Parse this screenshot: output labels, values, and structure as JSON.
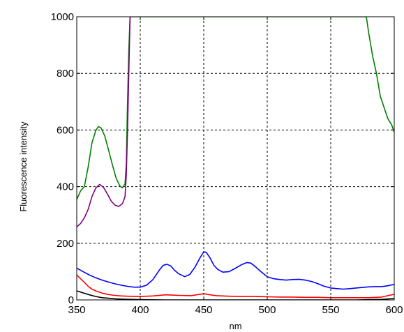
{
  "chart_data": {
    "type": "line",
    "title": "",
    "xlabel": "nm",
    "ylabel": "Fluorescence intensity",
    "xlim": [
      350,
      600
    ],
    "ylim": [
      0,
      1000
    ],
    "x_ticks": [
      350,
      400,
      450,
      500,
      550,
      600
    ],
    "y_ticks": [
      0,
      200,
      400,
      600,
      800,
      1000
    ],
    "x_tick_labels": [
      "350",
      "400",
      "450",
      "500",
      "550",
      "600"
    ],
    "y_tick_labels": [
      "0",
      "200",
      "400",
      "600",
      "800",
      "1000"
    ],
    "grid": true,
    "legend": "none",
    "series": [
      {
        "color": "#008000",
        "points": [
          [
            350,
            355
          ],
          [
            353,
            385
          ],
          [
            356,
            400
          ],
          [
            359,
            470
          ],
          [
            362,
            555
          ],
          [
            365,
            598
          ],
          [
            367,
            612
          ],
          [
            369,
            608
          ],
          [
            372,
            580
          ],
          [
            375,
            530
          ],
          [
            378,
            478
          ],
          [
            381,
            430
          ],
          [
            384,
            402
          ],
          [
            386,
            396
          ],
          [
            388,
            410
          ],
          [
            389,
            480
          ],
          [
            390,
            700
          ],
          [
            391,
            880
          ],
          [
            392,
            1000
          ],
          [
            578,
            1000
          ],
          [
            580,
            940
          ],
          [
            583,
            860
          ],
          [
            586,
            800
          ],
          [
            589,
            720
          ],
          [
            592,
            680
          ],
          [
            595,
            640
          ],
          [
            598,
            618
          ],
          [
            600,
            592
          ]
        ]
      },
      {
        "color": "#800080",
        "points": [
          [
            350,
            258
          ],
          [
            353,
            270
          ],
          [
            356,
            290
          ],
          [
            359,
            320
          ],
          [
            362,
            365
          ],
          [
            365,
            395
          ],
          [
            368,
            408
          ],
          [
            371,
            398
          ],
          [
            374,
            375
          ],
          [
            377,
            350
          ],
          [
            380,
            335
          ],
          [
            383,
            330
          ],
          [
            386,
            340
          ],
          [
            388,
            365
          ],
          [
            389,
            440
          ],
          [
            390,
            600
          ],
          [
            391,
            800
          ],
          [
            392,
            1000
          ]
        ]
      },
      {
        "color": "#0000ff",
        "points": [
          [
            350,
            112
          ],
          [
            355,
            100
          ],
          [
            360,
            88
          ],
          [
            365,
            78
          ],
          [
            370,
            70
          ],
          [
            375,
            63
          ],
          [
            380,
            57
          ],
          [
            385,
            52
          ],
          [
            390,
            48
          ],
          [
            395,
            45
          ],
          [
            400,
            45
          ],
          [
            405,
            52
          ],
          [
            410,
            72
          ],
          [
            415,
            105
          ],
          [
            418,
            122
          ],
          [
            421,
            126
          ],
          [
            424,
            120
          ],
          [
            427,
            105
          ],
          [
            430,
            93
          ],
          [
            435,
            82
          ],
          [
            439,
            90
          ],
          [
            443,
            115
          ],
          [
            447,
            148
          ],
          [
            450,
            170
          ],
          [
            452,
            168
          ],
          [
            455,
            148
          ],
          [
            458,
            122
          ],
          [
            461,
            108
          ],
          [
            465,
            98
          ],
          [
            470,
            100
          ],
          [
            475,
            112
          ],
          [
            480,
            125
          ],
          [
            484,
            132
          ],
          [
            487,
            130
          ],
          [
            490,
            120
          ],
          [
            495,
            100
          ],
          [
            500,
            82
          ],
          [
            505,
            75
          ],
          [
            510,
            72
          ],
          [
            515,
            70
          ],
          [
            520,
            72
          ],
          [
            525,
            73
          ],
          [
            530,
            70
          ],
          [
            535,
            65
          ],
          [
            540,
            57
          ],
          [
            545,
            48
          ],
          [
            550,
            42
          ],
          [
            555,
            40
          ],
          [
            560,
            38
          ],
          [
            565,
            40
          ],
          [
            570,
            42
          ],
          [
            575,
            44
          ],
          [
            580,
            46
          ],
          [
            585,
            47
          ],
          [
            590,
            47
          ],
          [
            595,
            50
          ],
          [
            600,
            55
          ]
        ]
      },
      {
        "color": "#ff0000",
        "points": [
          [
            350,
            88
          ],
          [
            353,
            75
          ],
          [
            356,
            62
          ],
          [
            359,
            48
          ],
          [
            362,
            38
          ],
          [
            366,
            30
          ],
          [
            370,
            24
          ],
          [
            375,
            19
          ],
          [
            380,
            16
          ],
          [
            385,
            14
          ],
          [
            390,
            13
          ],
          [
            400,
            12
          ],
          [
            410,
            14
          ],
          [
            420,
            18
          ],
          [
            430,
            16
          ],
          [
            440,
            15
          ],
          [
            450,
            22
          ],
          [
            455,
            18
          ],
          [
            460,
            15
          ],
          [
            470,
            13
          ],
          [
            480,
            12
          ],
          [
            490,
            12
          ],
          [
            500,
            11
          ],
          [
            510,
            10
          ],
          [
            520,
            10
          ],
          [
            530,
            9
          ],
          [
            540,
            9
          ],
          [
            550,
            8
          ],
          [
            560,
            8
          ],
          [
            570,
            8
          ],
          [
            580,
            8
          ],
          [
            590,
            10
          ],
          [
            600,
            20
          ]
        ]
      },
      {
        "color": "#000000",
        "points": [
          [
            350,
            32
          ],
          [
            355,
            25
          ],
          [
            360,
            18
          ],
          [
            365,
            12
          ],
          [
            370,
            8
          ],
          [
            375,
            6
          ],
          [
            380,
            4
          ],
          [
            390,
            2
          ],
          [
            400,
            1
          ],
          [
            420,
            0
          ],
          [
            450,
            0
          ],
          [
            480,
            0
          ],
          [
            510,
            0
          ],
          [
            540,
            0
          ],
          [
            570,
            0
          ],
          [
            590,
            2
          ],
          [
            600,
            5
          ]
        ]
      }
    ]
  }
}
